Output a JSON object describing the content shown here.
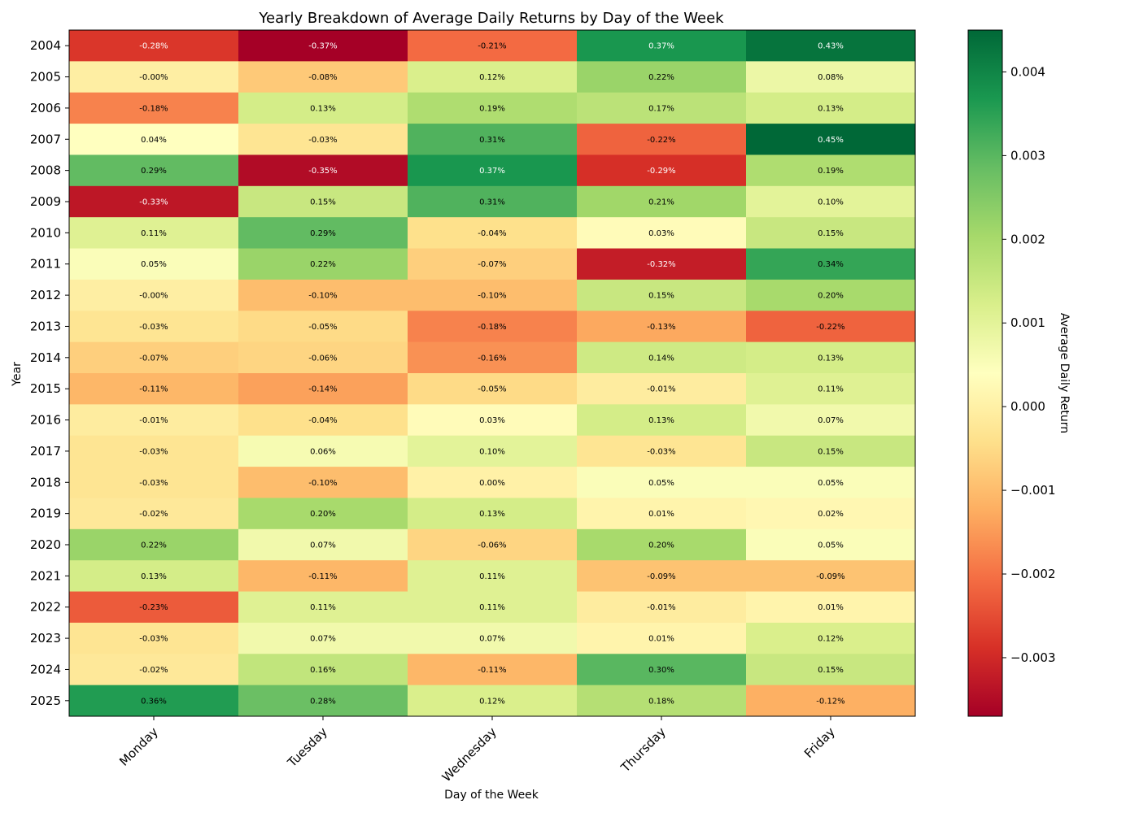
{
  "chart_data": {
    "type": "heatmap",
    "title": "Yearly Breakdown of Average Daily Returns by Day of the Week",
    "xlabel": "Day of the Week",
    "ylabel": "Year",
    "colorbar_label": "Average Daily Return",
    "colormap": "RdYlGn",
    "color_range": [
      -0.0037,
      0.0045
    ],
    "colorbar_ticks": [
      -0.003,
      -0.002,
      -0.001,
      0.0,
      0.001,
      0.002,
      0.003,
      0.004
    ],
    "colorbar_tick_labels": [
      "−0.003",
      "−0.002",
      "−0.001",
      "0.000",
      "0.001",
      "0.002",
      "0.003",
      "0.004"
    ],
    "columns": [
      "Monday",
      "Tuesday",
      "Wednesday",
      "Thursday",
      "Friday"
    ],
    "rows": [
      "2004",
      "2005",
      "2006",
      "2007",
      "2008",
      "2009",
      "2010",
      "2011",
      "2012",
      "2013",
      "2014",
      "2015",
      "2016",
      "2017",
      "2018",
      "2019",
      "2020",
      "2021",
      "2022",
      "2023",
      "2024",
      "2025"
    ],
    "values": [
      [
        -0.0028,
        -0.0037,
        -0.0021,
        0.0037,
        0.0043
      ],
      [
        -4e-05,
        -0.0008,
        0.0012,
        0.0022,
        0.0008
      ],
      [
        -0.0018,
        0.0013,
        0.0019,
        0.0017,
        0.0013
      ],
      [
        0.0004,
        -0.0003,
        0.0031,
        -0.0022,
        0.0045
      ],
      [
        0.0029,
        -0.0035,
        0.0037,
        -0.0029,
        0.0019
      ],
      [
        -0.0033,
        0.0015,
        0.0031,
        0.0021,
        0.001
      ],
      [
        0.0011,
        0.0029,
        -0.0004,
        0.0003,
        0.0015
      ],
      [
        0.0005,
        0.0022,
        -0.0007,
        -0.0032,
        0.0034
      ],
      [
        -4e-05,
        -0.001,
        -0.001,
        0.0015,
        0.002
      ],
      [
        -0.0003,
        -0.0005,
        -0.0018,
        -0.0013,
        -0.0022
      ],
      [
        -0.0007,
        -0.0006,
        -0.0016,
        0.0014,
        0.0013
      ],
      [
        -0.0011,
        -0.0014,
        -0.0005,
        -0.0001,
        0.0011
      ],
      [
        -0.0001,
        -0.0004,
        0.0003,
        0.0013,
        0.0007
      ],
      [
        -0.0003,
        0.0006,
        0.001,
        -0.0003,
        0.0015
      ],
      [
        -0.0003,
        -0.001,
        2e-05,
        0.0005,
        0.0005
      ],
      [
        -0.0002,
        0.002,
        0.0013,
        0.0001,
        0.0002
      ],
      [
        0.0022,
        0.0007,
        -0.0006,
        0.002,
        0.0005
      ],
      [
        0.0013,
        -0.0011,
        0.0011,
        -0.0009,
        -0.0009
      ],
      [
        -0.0023,
        0.0011,
        0.0011,
        -0.0001,
        0.0001
      ],
      [
        -0.0003,
        0.0007,
        0.0007,
        0.0001,
        0.0012
      ],
      [
        -0.0002,
        0.0016,
        -0.0011,
        0.003,
        0.0015
      ],
      [
        0.0036,
        0.0028,
        0.0012,
        0.0018,
        -0.0012
      ]
    ],
    "labels": [
      [
        "-0.28%",
        "-0.37%",
        "-0.21%",
        "0.37%",
        "0.43%"
      ],
      [
        "-0.00%",
        "-0.08%",
        "0.12%",
        "0.22%",
        "0.08%"
      ],
      [
        "-0.18%",
        "0.13%",
        "0.19%",
        "0.17%",
        "0.13%"
      ],
      [
        "0.04%",
        "-0.03%",
        "0.31%",
        "-0.22%",
        "0.45%"
      ],
      [
        "0.29%",
        "-0.35%",
        "0.37%",
        "-0.29%",
        "0.19%"
      ],
      [
        "-0.33%",
        "0.15%",
        "0.31%",
        "0.21%",
        "0.10%"
      ],
      [
        "0.11%",
        "0.29%",
        "-0.04%",
        "0.03%",
        "0.15%"
      ],
      [
        "0.05%",
        "0.22%",
        "-0.07%",
        "-0.32%",
        "0.34%"
      ],
      [
        "-0.00%",
        "-0.10%",
        "-0.10%",
        "0.15%",
        "0.20%"
      ],
      [
        "-0.03%",
        "-0.05%",
        "-0.18%",
        "-0.13%",
        "-0.22%"
      ],
      [
        "-0.07%",
        "-0.06%",
        "-0.16%",
        "0.14%",
        "0.13%"
      ],
      [
        "-0.11%",
        "-0.14%",
        "-0.05%",
        "-0.01%",
        "0.11%"
      ],
      [
        "-0.01%",
        "-0.04%",
        "0.03%",
        "0.13%",
        "0.07%"
      ],
      [
        "-0.03%",
        "0.06%",
        "0.10%",
        "-0.03%",
        "0.15%"
      ],
      [
        "-0.03%",
        "-0.10%",
        "0.00%",
        "0.05%",
        "0.05%"
      ],
      [
        "-0.02%",
        "0.20%",
        "0.13%",
        "0.01%",
        "0.02%"
      ],
      [
        "0.22%",
        "0.07%",
        "-0.06%",
        "0.20%",
        "0.05%"
      ],
      [
        "0.13%",
        "-0.11%",
        "0.11%",
        "-0.09%",
        "-0.09%"
      ],
      [
        "-0.23%",
        "0.11%",
        "0.11%",
        "-0.01%",
        "0.01%"
      ],
      [
        "-0.03%",
        "0.07%",
        "0.07%",
        "0.01%",
        "0.12%"
      ],
      [
        "-0.02%",
        "0.16%",
        "-0.11%",
        "0.30%",
        "0.15%"
      ],
      [
        "0.36%",
        "0.28%",
        "0.12%",
        "0.18%",
        "-0.12%"
      ]
    ],
    "grid": false,
    "legend": "colorbar-right"
  }
}
